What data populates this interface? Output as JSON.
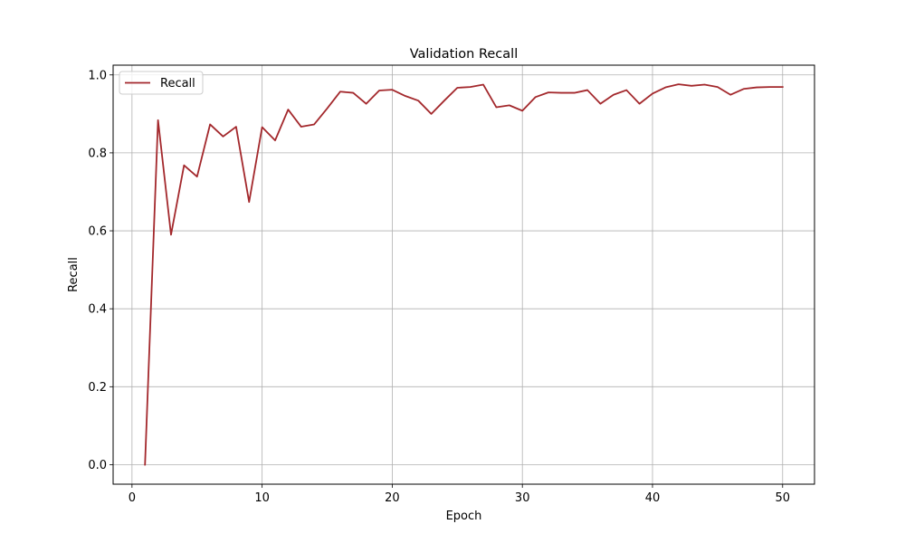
{
  "chart_data": {
    "type": "line",
    "title": "Validation Recall",
    "xlabel": "Epoch",
    "ylabel": "Recall",
    "xlim": [
      -1.45,
      52.45
    ],
    "ylim": [
      -0.05,
      1.025
    ],
    "xticks": [
      0,
      10,
      20,
      30,
      40,
      50
    ],
    "yticks": [
      0.0,
      0.2,
      0.4,
      0.6,
      0.8,
      1.0
    ],
    "xtick_labels": [
      "0",
      "10",
      "20",
      "30",
      "40",
      "50"
    ],
    "ytick_labels": [
      "0.0",
      "0.2",
      "0.4",
      "0.6",
      "0.8",
      "1.0"
    ],
    "grid": true,
    "legend_position": "top-left",
    "series": [
      {
        "name": "Recall",
        "color": "#a3282c",
        "x": [
          1,
          2,
          3,
          4,
          5,
          6,
          7,
          8,
          9,
          10,
          11,
          12,
          13,
          14,
          15,
          16,
          17,
          18,
          19,
          20,
          21,
          22,
          23,
          24,
          25,
          26,
          27,
          28,
          29,
          30,
          31,
          32,
          33,
          34,
          35,
          36,
          37,
          38,
          39,
          40,
          41,
          42,
          43,
          44,
          45,
          46,
          47,
          48,
          49,
          50
        ],
        "y": [
          0.0,
          0.884,
          0.59,
          0.768,
          0.739,
          0.873,
          0.842,
          0.867,
          0.674,
          0.866,
          0.832,
          0.911,
          0.867,
          0.873,
          0.914,
          0.957,
          0.954,
          0.926,
          0.96,
          0.962,
          0.946,
          0.934,
          0.9,
          0.934,
          0.967,
          0.969,
          0.975,
          0.917,
          0.922,
          0.908,
          0.943,
          0.955,
          0.954,
          0.954,
          0.961,
          0.926,
          0.949,
          0.961,
          0.926,
          0.952,
          0.968,
          0.976,
          0.972,
          0.975,
          0.969,
          0.949,
          0.964,
          0.968,
          0.969,
          0.969
        ]
      }
    ]
  }
}
